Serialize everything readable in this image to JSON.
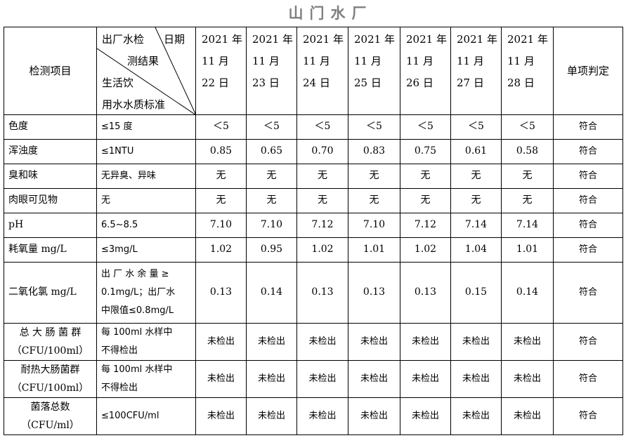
{
  "title": "山门水厂",
  "header": {
    "item_label": "检测项目",
    "corner": {
      "top_left": "出厂水检",
      "top_right": "日期",
      "middle": "测结果",
      "bottom1": "生活饮",
      "bottom2": "用水水质标准"
    },
    "dates": [
      [
        "2021 年",
        "11 月",
        "22 日"
      ],
      [
        "2021 年",
        "11 月",
        "23 日"
      ],
      [
        "2021 年",
        "11 月",
        "24 日"
      ],
      [
        "2021 年",
        "11 月",
        "25 日"
      ],
      [
        "2021 年",
        "11 月",
        "26 日"
      ],
      [
        "2021 年",
        "11 月",
        "27 日"
      ],
      [
        "2021 年",
        "11 月",
        "28 日"
      ]
    ],
    "verdict_label": "单项判定"
  },
  "rows": [
    {
      "item": [
        "色度"
      ],
      "standard": [
        "≤15 度"
      ],
      "values": [
        "＜5",
        "＜5",
        "＜5",
        "＜5",
        "＜5",
        "＜5",
        "＜5"
      ],
      "verdict": "符合"
    },
    {
      "item": [
        "浑浊度"
      ],
      "standard": [
        "≤1NTU"
      ],
      "values": [
        "0.85",
        "0.65",
        "0.70",
        "0.83",
        "0.75",
        "0.61",
        "0.58"
      ],
      "verdict": "符合"
    },
    {
      "item": [
        "臭和味"
      ],
      "standard": [
        "无异臭、异味"
      ],
      "values": [
        "无",
        "无",
        "无",
        "无",
        "无",
        "无",
        "无"
      ],
      "verdict": "符合"
    },
    {
      "item": [
        "肉眼可见物"
      ],
      "standard": [
        "无"
      ],
      "values": [
        "无",
        "无",
        "无",
        "无",
        "无",
        "无",
        "无"
      ],
      "verdict": "符合"
    },
    {
      "item": [
        "pH"
      ],
      "standard": [
        "6.5~8.5"
      ],
      "values": [
        "7.10",
        "7.10",
        "7.12",
        "7.10",
        "7.12",
        "7.14",
        "7.14"
      ],
      "verdict": "符合"
    },
    {
      "item": [
        "耗氧量 mg/L"
      ],
      "standard": [
        "≤3mg/L"
      ],
      "values": [
        "1.02",
        "0.95",
        "1.02",
        "1.01",
        "1.02",
        "1.04",
        "1.01"
      ],
      "verdict": "符合"
    },
    {
      "item": [
        "二氧化氯 mg/L"
      ],
      "standard": [
        "出 厂 水 余 量 ≥",
        "0.1mg/L；出厂水",
        "中限值≤0.8mg/L"
      ],
      "values": [
        "0.13",
        "0.14",
        "0.13",
        "0.13",
        "0.13",
        "0.15",
        "0.14"
      ],
      "verdict": "符合"
    },
    {
      "item": [
        "总 大 肠 菌 群",
        "（CFU/100ml）"
      ],
      "standard": [
        "每 100ml 水样中",
        "不得检出"
      ],
      "values": [
        "未检出",
        "未检出",
        "未检出",
        "未检出",
        "未检出",
        "未检出",
        "未检出"
      ],
      "verdict": "符合"
    },
    {
      "item": [
        "耐热大肠菌群",
        "（CFU/100ml）"
      ],
      "standard": [
        "每 100ml 水样中",
        "不得检出"
      ],
      "values": [
        "未检出",
        "未检出",
        "未检出",
        "未检出",
        "未检出",
        "未检出",
        "未检出"
      ],
      "verdict": "符合"
    },
    {
      "item": [
        "菌落总数",
        "（CFU/ml）"
      ],
      "standard": [
        "≤100CFU/ml"
      ],
      "values": [
        "未检出",
        "未检出",
        "未检出",
        "未检出",
        "未检出",
        "未检出",
        "未检出"
      ],
      "verdict": "符合"
    }
  ]
}
